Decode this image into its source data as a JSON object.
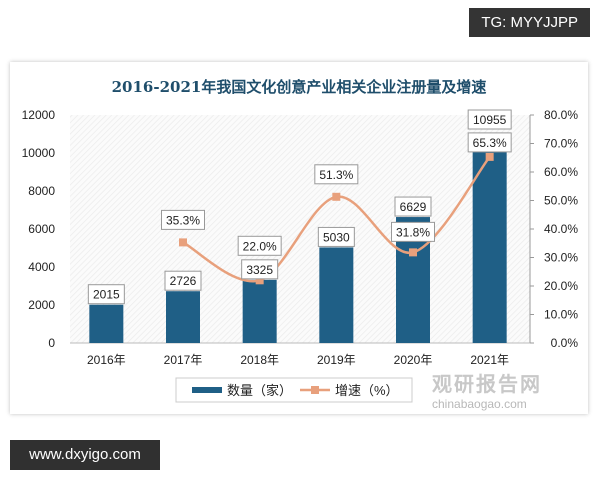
{
  "overlay": {
    "tg_label": "TG: MYYJJPP",
    "site_label": "www.dxyigo.com"
  },
  "watermark": {
    "cn": "观研报告网",
    "url": "chinabaogao.com"
  },
  "chart_data": {
    "type": "bar+line",
    "title": "2016-2021年我国文化创意产业相关企业注册量及增速",
    "categories": [
      "2016年",
      "2017年",
      "2018年",
      "2019年",
      "2020年",
      "2021年"
    ],
    "series": [
      {
        "name": "数量（家）",
        "type": "bar",
        "axis": "left",
        "color": "#1f5f86",
        "values": [
          2015,
          2726,
          3325,
          5030,
          6629,
          10955
        ],
        "labels": [
          "2015",
          "2726",
          "3325",
          "5030",
          "6629",
          "10955"
        ]
      },
      {
        "name": "增速（%）",
        "type": "line",
        "axis": "right",
        "color": "#e8a07c",
        "values": [
          null,
          35.3,
          22.0,
          51.3,
          31.8,
          65.3
        ],
        "labels": [
          "",
          "35.3%",
          "22.0%",
          "51.3%",
          "31.8%",
          "65.3%"
        ]
      }
    ],
    "left_axis": {
      "ylim": [
        0,
        12000
      ],
      "ticks": [
        "0",
        "2000",
        "4000",
        "6000",
        "8000",
        "10000",
        "12000"
      ]
    },
    "right_axis": {
      "ylim": [
        0,
        80
      ],
      "ticks": [
        "0.0%",
        "10.0%",
        "20.0%",
        "30.0%",
        "40.0%",
        "50.0%",
        "60.0%",
        "70.0%",
        "80.0%"
      ]
    },
    "legend_position": "bottom",
    "grid": false
  }
}
